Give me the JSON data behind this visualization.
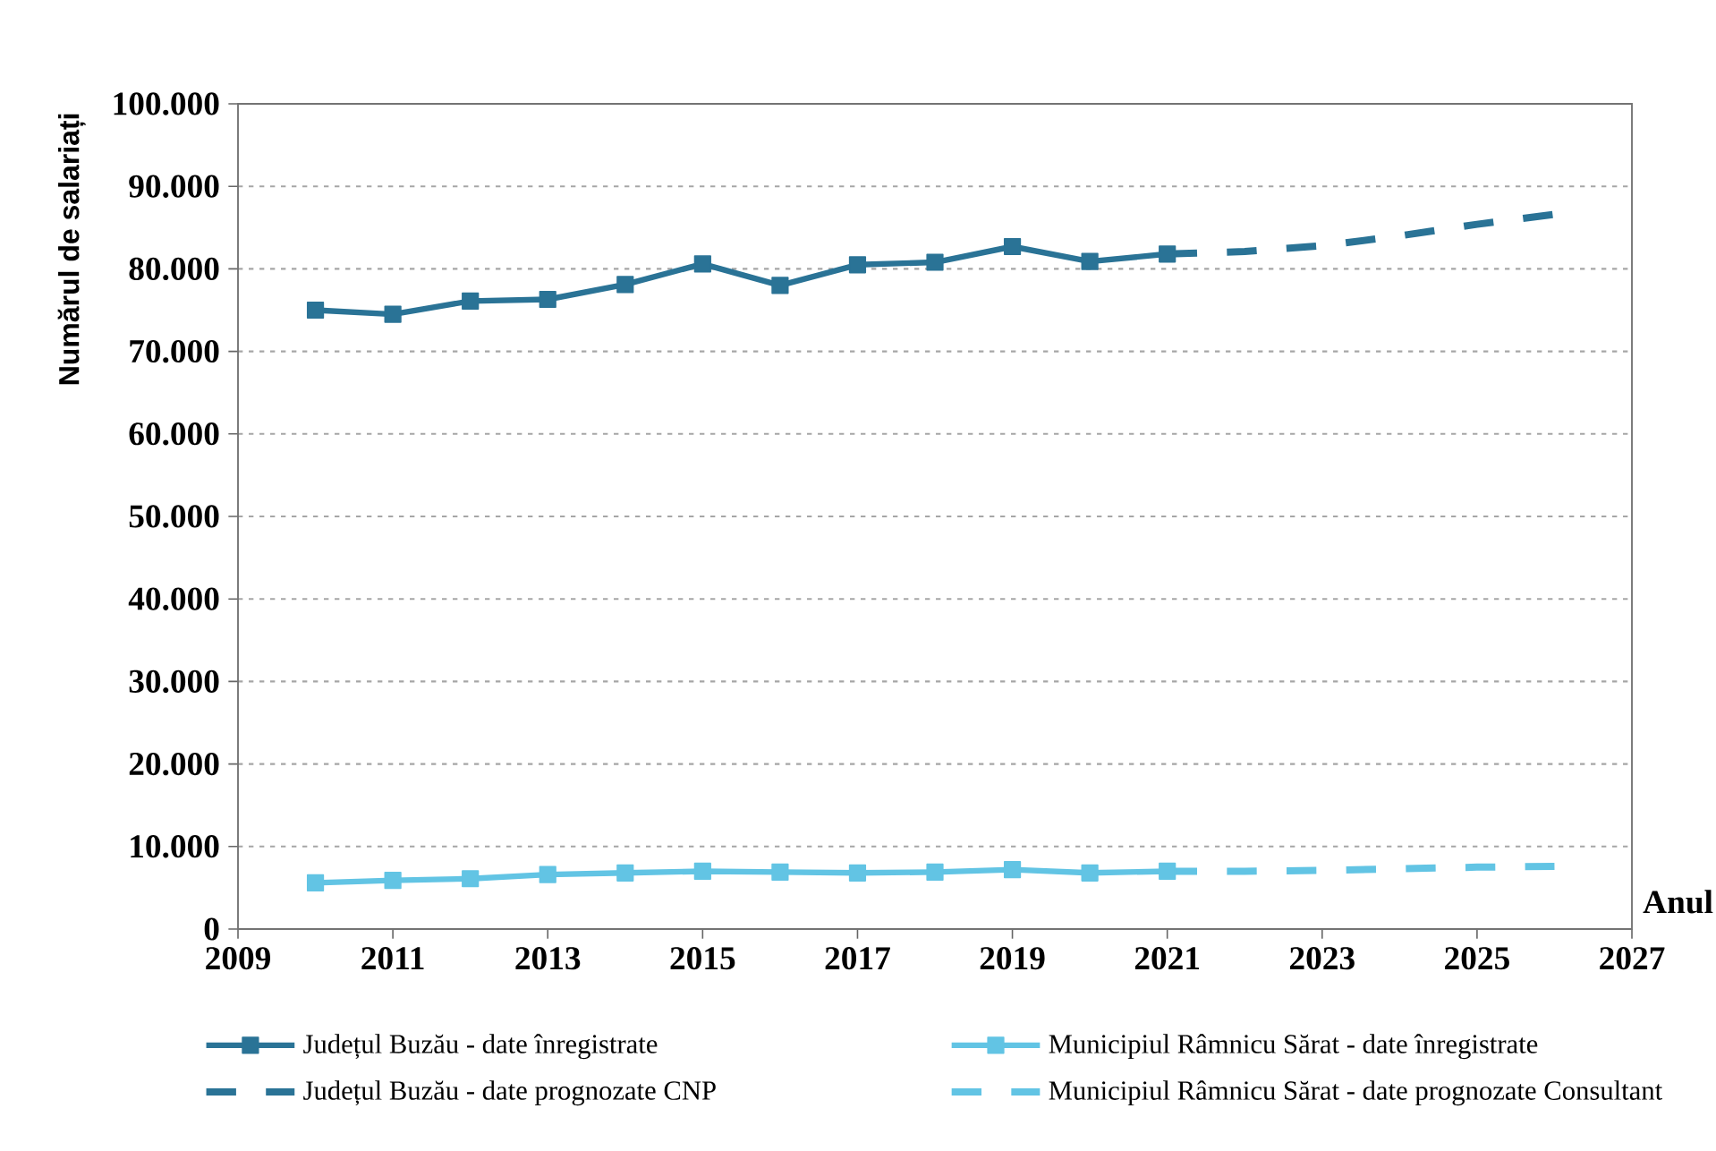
{
  "chart_data": {
    "type": "line",
    "xlabel": "Anul",
    "ylabel": "Numărul de salariați",
    "xlim": [
      2009,
      2027
    ],
    "xticks": [
      2009,
      2011,
      2013,
      2015,
      2017,
      2019,
      2021,
      2023,
      2025,
      2027
    ],
    "ylim": [
      0,
      100000
    ],
    "yticks": [
      0,
      {
        "value": 10000,
        "label": "10.000"
      },
      {
        "value": 20000,
        "label": "20.000"
      },
      {
        "value": 30000,
        "label": "30.000"
      },
      {
        "value": 40000,
        "label": "40.000"
      },
      {
        "value": 50000,
        "label": "50.000"
      },
      {
        "value": 60000,
        "label": "60.000"
      },
      {
        "value": 70000,
        "label": "70.000"
      },
      {
        "value": 80000,
        "label": "80.000"
      },
      {
        "value": 90000,
        "label": "90.000"
      },
      {
        "value": 100000,
        "label": "100.000"
      }
    ],
    "grid": "y",
    "legend": "bottom",
    "series": [
      {
        "name": "Județul Buzău - date înregistrate",
        "color": "#2a7396",
        "marker": "square",
        "line_style": "solid",
        "x": [
          2010,
          2011,
          2012,
          2013,
          2014,
          2015,
          2016,
          2017,
          2018,
          2019,
          2020,
          2021
        ],
        "values": [
          75000,
          74500,
          76100,
          76300,
          78100,
          80600,
          78000,
          80500,
          80800,
          82700,
          80900,
          81800
        ]
      },
      {
        "name": "Municipiul Râmnicu Sărat - date înregistrate",
        "color": "#62c4e4",
        "marker": "square",
        "line_style": "solid",
        "x": [
          2010,
          2011,
          2012,
          2013,
          2014,
          2015,
          2016,
          2017,
          2018,
          2019,
          2020,
          2021
        ],
        "values": [
          5600,
          5900,
          6100,
          6600,
          6800,
          7000,
          6900,
          6800,
          6900,
          7200,
          6800,
          7000
        ]
      },
      {
        "name": "Județul Buzău - date prognozate CNP",
        "color": "#2a7396",
        "marker": "none",
        "line_style": "dashed",
        "x": [
          2021,
          2022,
          2023,
          2024,
          2025,
          2026
        ],
        "values": [
          81800,
          82100,
          82800,
          84000,
          85400,
          86600
        ]
      },
      {
        "name": "Municipiul Râmnicu Sărat - date prognozate Consultant",
        "color": "#62c4e4",
        "marker": "none",
        "line_style": "dashed",
        "x": [
          2021,
          2022,
          2023,
          2024,
          2025,
          2026
        ],
        "values": [
          7000,
          7000,
          7100,
          7300,
          7500,
          7600
        ]
      }
    ]
  }
}
